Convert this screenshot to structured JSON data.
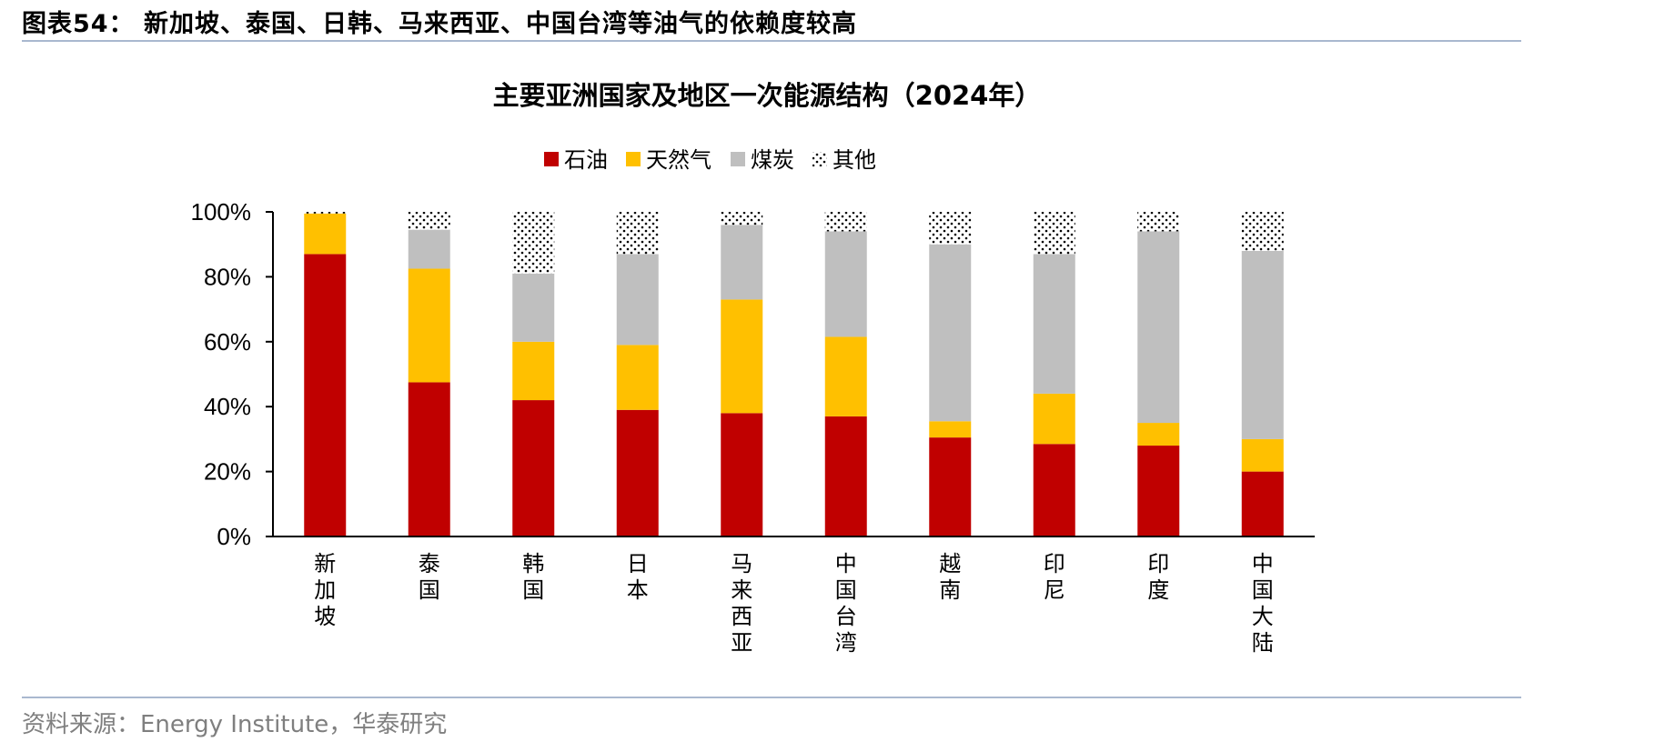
{
  "figure": {
    "title": "图表54： 新加坡、泰国、日韩、马来西亚、中国台湾等油气的依赖度较高",
    "source": "资料来源：Energy Institute，华泰研究"
  },
  "colors": {
    "oil": "#c00000",
    "gas": "#ffc000",
    "coal": "#bfbfbf",
    "other": "#ffffff",
    "axis": "#000000",
    "rule": "#a9b8cf"
  },
  "chart_data": {
    "type": "bar",
    "stacked": true,
    "title": "主要亚洲国家及地区一次能源结构（2024年）",
    "xlabel": "",
    "ylabel": "",
    "ylim": [
      0,
      100
    ],
    "yticks": [
      "0%",
      "20%",
      "40%",
      "60%",
      "80%",
      "100%"
    ],
    "grid": false,
    "legend_position": "top",
    "categories": [
      "新加坡",
      "泰国",
      "韩国",
      "日本",
      "马来西亚",
      "中国台湾",
      "越南",
      "印尼",
      "印度",
      "中国大陆"
    ],
    "series": [
      {
        "name": "石油",
        "values": [
          87,
          47.5,
          42,
          39,
          38,
          37,
          30.5,
          28.5,
          28,
          20
        ]
      },
      {
        "name": "天然气",
        "values": [
          12.5,
          35,
          18,
          20,
          35,
          24.5,
          5,
          15.5,
          7,
          10
        ]
      },
      {
        "name": "煤炭",
        "values": [
          0,
          12,
          21,
          28,
          23,
          32.5,
          54.5,
          43,
          59,
          58
        ]
      },
      {
        "name": "其他",
        "values": [
          0.5,
          5.5,
          19,
          13,
          4,
          6,
          10,
          13,
          6,
          12
        ]
      }
    ]
  }
}
